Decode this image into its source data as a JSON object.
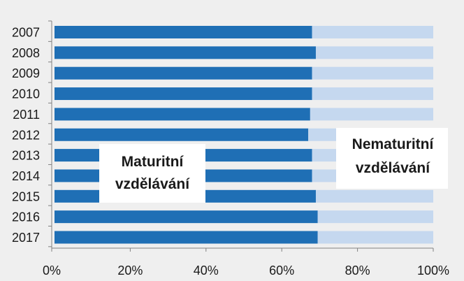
{
  "chart_data": {
    "type": "bar",
    "orientation": "horizontal",
    "stacked": "100%",
    "categories": [
      "2007",
      "2008",
      "2009",
      "2010",
      "2011",
      "2012",
      "2013",
      "2014",
      "2015",
      "2016",
      "2017"
    ],
    "series": [
      {
        "name": "Maturitní vzdělávání",
        "values": [
          68,
          69,
          68,
          68,
          67.5,
          67,
          68,
          68,
          69,
          69.5,
          69.5
        ],
        "color": "#1f6fb5"
      },
      {
        "name": "Nematuritní vzdělávání",
        "values": [
          32,
          31,
          32,
          32,
          32.5,
          33,
          32,
          32,
          31,
          30.5,
          30.5
        ],
        "color": "#c5d8ef"
      }
    ],
    "x_ticks": [
      "0%",
      "20%",
      "40%",
      "60%",
      "80%",
      "100%"
    ],
    "xlim": [
      0,
      100
    ],
    "grid": false,
    "annotations": [
      {
        "lines": [
          "Maturitní",
          "vzdělávání"
        ],
        "series": "Maturitní vzdělávání"
      },
      {
        "lines": [
          "Nematuritní",
          "vzdělávání"
        ],
        "series": "Nematuritní vzdělávání"
      }
    ]
  },
  "colors": {
    "background": "#efefef",
    "axis": "#808080"
  }
}
